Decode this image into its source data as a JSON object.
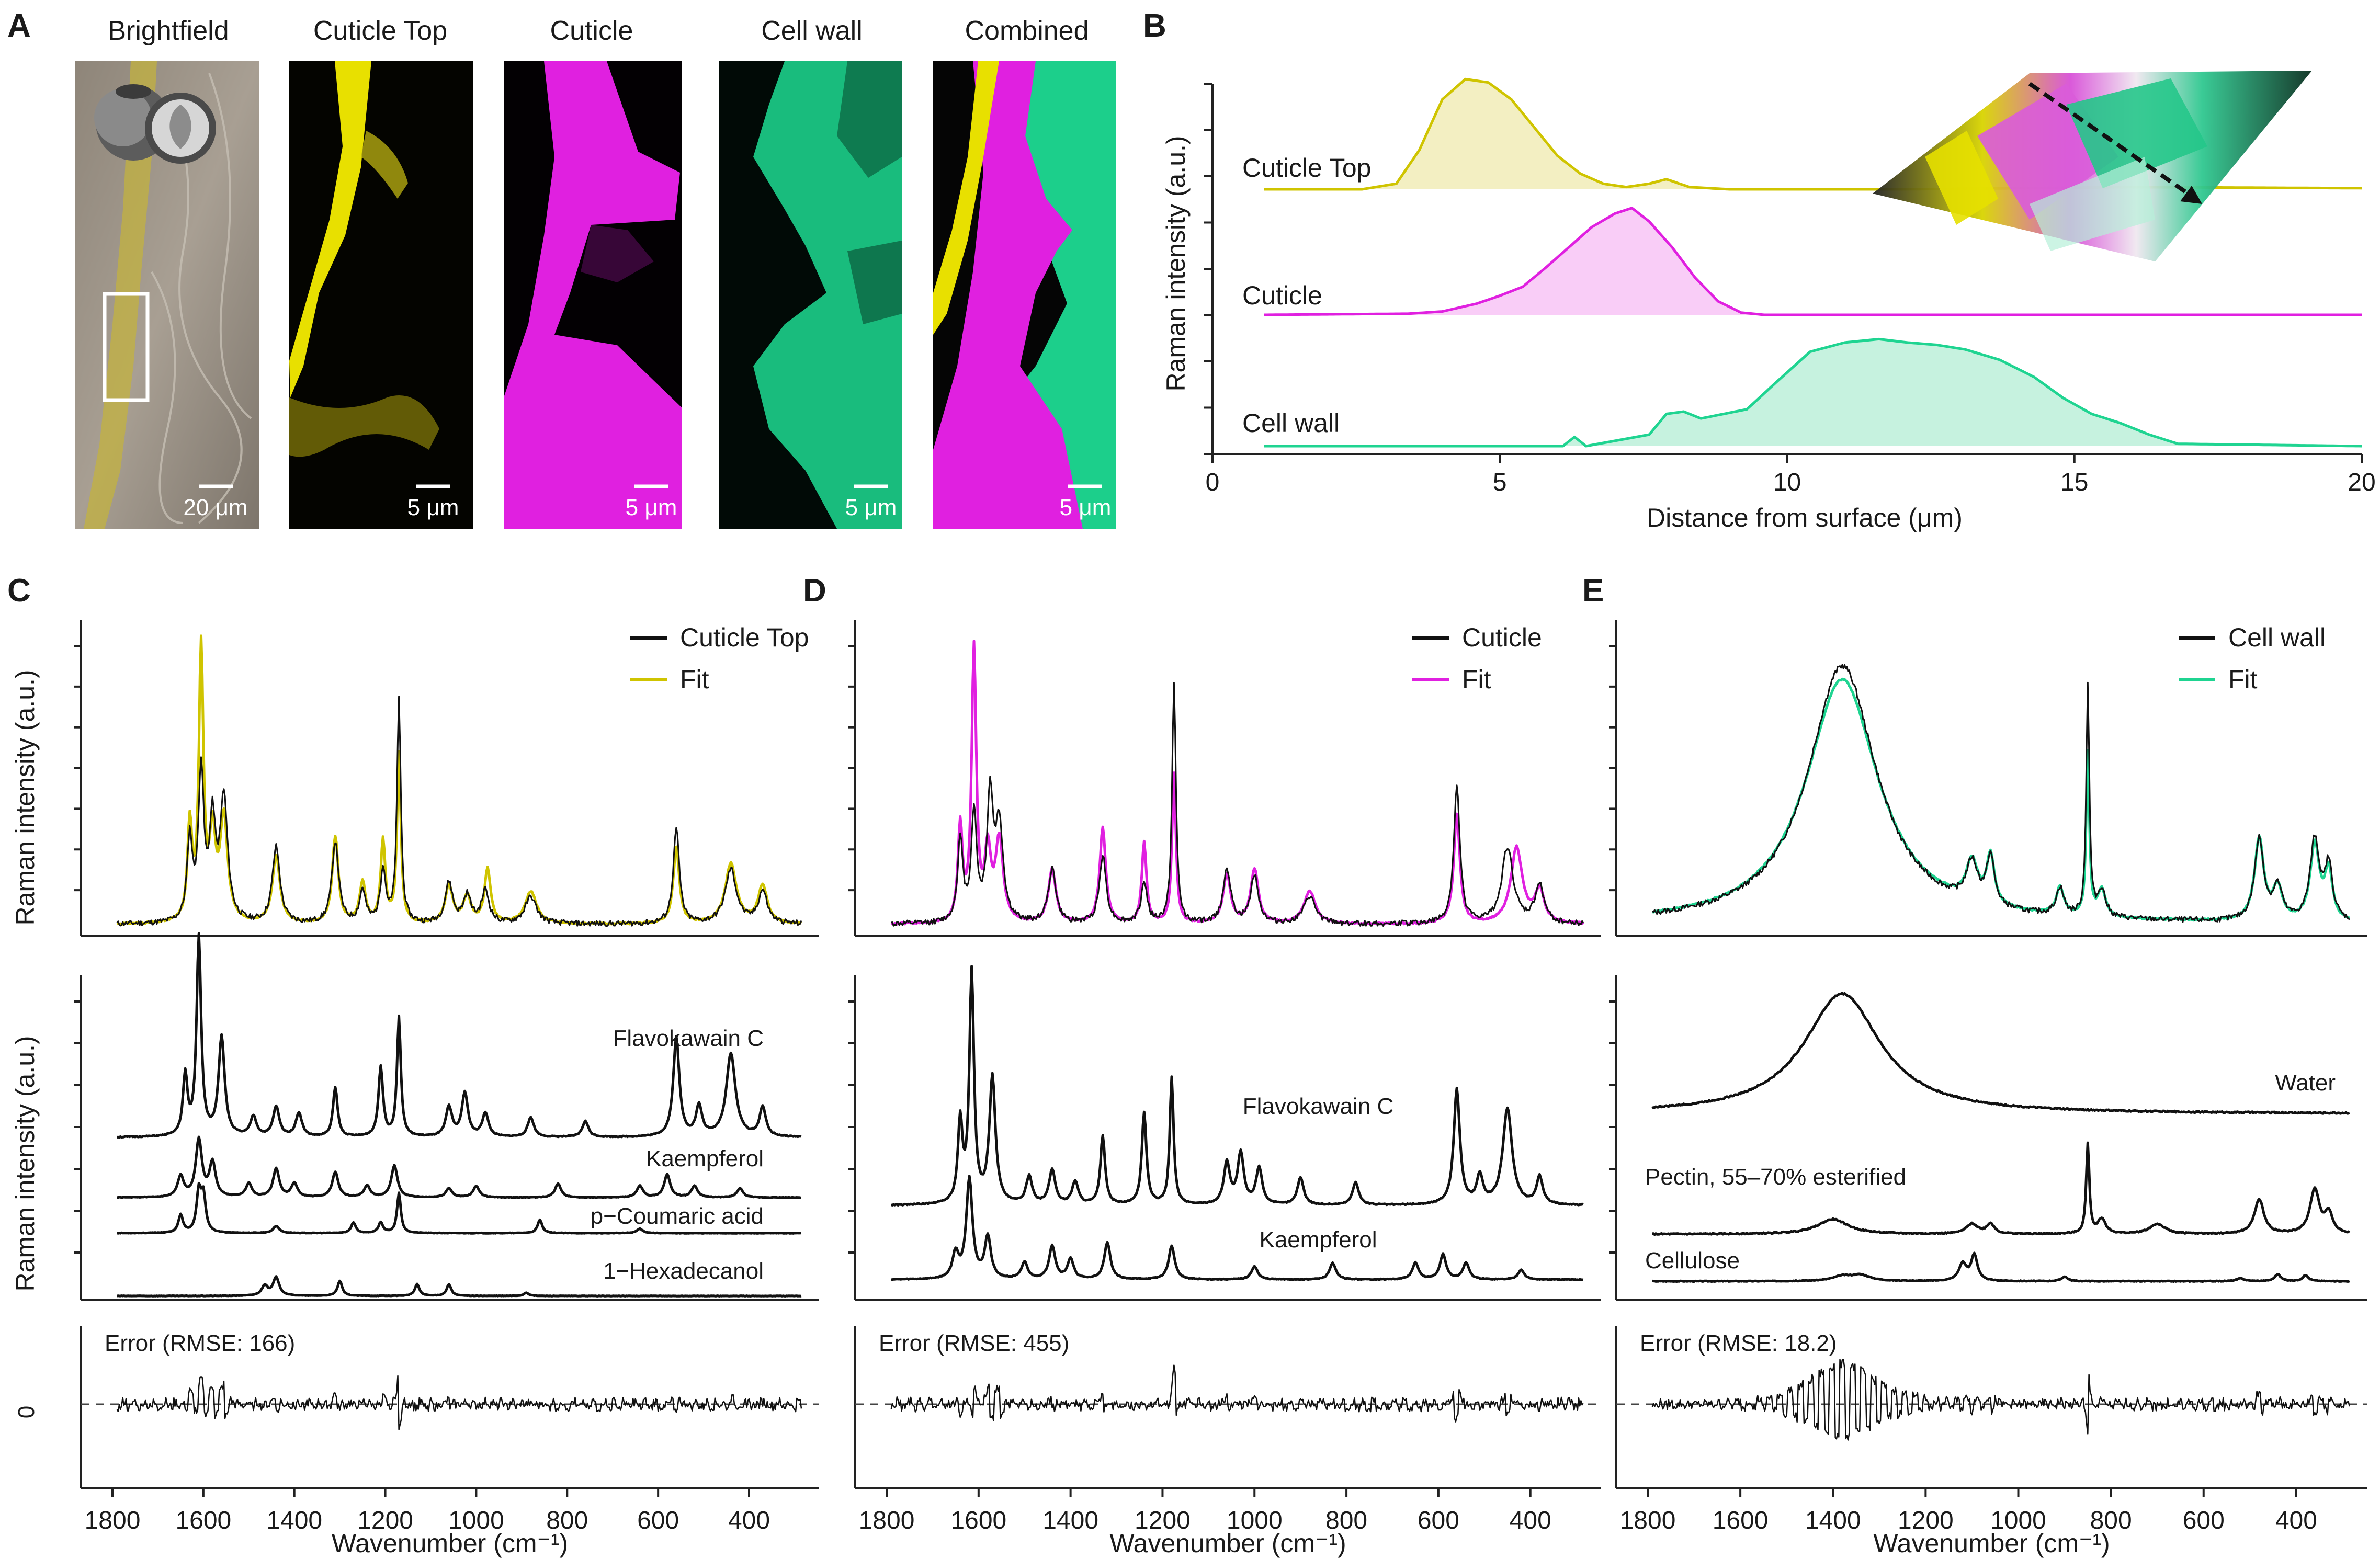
{
  "colors": {
    "cuticle_top": "#cfc400",
    "cuticle": "#e020e0",
    "cell_wall": "#1fd491",
    "raw": "#111111",
    "cuticle_top_fill": "#f3efc2",
    "cuticle_fill": "#f9cdf7",
    "cell_wall_fill": "#c6f2df"
  },
  "panel_letters": {
    "a": "A",
    "b": "B",
    "c": "C",
    "d": "D",
    "e": "E"
  },
  "panelA": {
    "titles": [
      "Brightfield",
      "Cuticle Top",
      "Cuticle",
      "Cell wall",
      "Combined"
    ],
    "scale_brightfield": "20 μm",
    "scale_small": "5 μm"
  },
  "chart_data": [
    {
      "id": "B",
      "type": "area",
      "title": "",
      "xlabel": "Distance from surface (μm)",
      "ylabel": "Raman intensity (a.u.)",
      "xlim": [
        0,
        20
      ],
      "x_ticks": [
        "0",
        "5",
        "10",
        "15",
        "20"
      ],
      "series": [
        {
          "name": "Cuticle Top",
          "x": [
            0.9,
            2.6,
            3.2,
            3.6,
            4.0,
            4.4,
            4.8,
            5.2,
            5.6,
            6.0,
            6.4,
            6.8,
            7.2,
            7.6,
            7.9,
            8.3,
            9,
            12,
            16,
            20
          ],
          "values": [
            0,
            0,
            0.05,
            0.35,
            0.8,
            0.98,
            0.95,
            0.8,
            0.55,
            0.3,
            0.14,
            0.05,
            0.02,
            0.05,
            0.09,
            0.02,
            0,
            0,
            0.02,
            0.01
          ]
        },
        {
          "name": "Cuticle",
          "x": [
            0.9,
            3.4,
            4.0,
            4.6,
            5.0,
            5.4,
            5.8,
            6.2,
            6.6,
            7.0,
            7.3,
            7.6,
            8.0,
            8.4,
            8.8,
            9.2,
            9.6,
            20
          ],
          "values": [
            0,
            0.01,
            0.03,
            0.1,
            0.17,
            0.25,
            0.42,
            0.6,
            0.78,
            0.9,
            0.95,
            0.83,
            0.6,
            0.33,
            0.12,
            0.02,
            0,
            0
          ]
        },
        {
          "name": "Cell wall",
          "x": [
            0.9,
            6.1,
            6.3,
            6.5,
            7.6,
            7.9,
            8.2,
            8.5,
            8.9,
            9.3,
            9.8,
            10.4,
            11.0,
            11.6,
            12.1,
            12.6,
            13.1,
            13.7,
            14.3,
            14.8,
            15.3,
            15.8,
            16.3,
            16.8,
            20
          ],
          "values": [
            0,
            0,
            0.08,
            0,
            0.1,
            0.28,
            0.3,
            0.24,
            0.28,
            0.32,
            0.55,
            0.82,
            0.9,
            0.93,
            0.9,
            0.88,
            0.84,
            0.75,
            0.6,
            0.42,
            0.28,
            0.2,
            0.1,
            0.02,
            0
          ]
        }
      ]
    },
    {
      "id": "C",
      "type": "line",
      "xlabel": "Wavenumber (cm⁻¹)",
      "ylabel_top": "Raman intensity (a.u.)",
      "ylabel_mid": "Raman intensity (a.u.)",
      "xlim": [
        1800,
        270
      ],
      "x_ticks": [
        "1800",
        "1600",
        "1400",
        "1200",
        "1000",
        "800",
        "600",
        "400"
      ],
      "legend": [
        "Cuticle Top",
        "Fit"
      ],
      "raw_peaks": [
        [
          1630,
          0.3,
          7
        ],
        [
          1605,
          0.55,
          7
        ],
        [
          1580,
          0.35,
          8
        ],
        [
          1555,
          0.45,
          10
        ],
        [
          1440,
          0.28,
          10
        ],
        [
          1310,
          0.3,
          9
        ],
        [
          1250,
          0.12,
          8
        ],
        [
          1205,
          0.2,
          7
        ],
        [
          1170,
          0.82,
          5
        ],
        [
          1060,
          0.15,
          10
        ],
        [
          1020,
          0.1,
          10
        ],
        [
          980,
          0.12,
          10
        ],
        [
          880,
          0.1,
          15
        ],
        [
          560,
          0.35,
          8
        ],
        [
          440,
          0.2,
          15
        ],
        [
          370,
          0.12,
          12
        ]
      ],
      "fit_peaks": [
        [
          1630,
          0.35,
          6
        ],
        [
          1605,
          1.0,
          6
        ],
        [
          1580,
          0.3,
          8
        ],
        [
          1555,
          0.38,
          10
        ],
        [
          1440,
          0.25,
          10
        ],
        [
          1310,
          0.32,
          8
        ],
        [
          1250,
          0.15,
          8
        ],
        [
          1205,
          0.3,
          6
        ],
        [
          1170,
          0.62,
          5
        ],
        [
          1060,
          0.14,
          10
        ],
        [
          1020,
          0.1,
          10
        ],
        [
          975,
          0.2,
          8
        ],
        [
          880,
          0.12,
          15
        ],
        [
          560,
          0.28,
          8
        ],
        [
          440,
          0.22,
          15
        ],
        [
          370,
          0.14,
          12
        ]
      ],
      "components": [
        {
          "name": "Flavokawain C",
          "peaks": [
            [
              1640,
              0.3,
              6
            ],
            [
              1610,
              1.0,
              6
            ],
            [
              1560,
              0.5,
              8
            ],
            [
              1490,
              0.1,
              8
            ],
            [
              1440,
              0.15,
              8
            ],
            [
              1390,
              0.12,
              8
            ],
            [
              1310,
              0.25,
              6
            ],
            [
              1210,
              0.35,
              6
            ],
            [
              1170,
              0.6,
              5
            ],
            [
              1060,
              0.15,
              8
            ],
            [
              1025,
              0.22,
              8
            ],
            [
              980,
              0.12,
              8
            ],
            [
              880,
              0.1,
              8
            ],
            [
              760,
              0.08,
              8
            ],
            [
              560,
              0.5,
              8
            ],
            [
              510,
              0.15,
              8
            ],
            [
              440,
              0.42,
              12
            ],
            [
              370,
              0.15,
              8
            ]
          ]
        },
        {
          "name": "Kaempferol",
          "peaks": [
            [
              1650,
              0.18,
              8
            ],
            [
              1610,
              0.5,
              8
            ],
            [
              1580,
              0.3,
              8
            ],
            [
              1500,
              0.12,
              8
            ],
            [
              1440,
              0.25,
              8
            ],
            [
              1400,
              0.12,
              8
            ],
            [
              1310,
              0.22,
              8
            ],
            [
              1240,
              0.1,
              8
            ],
            [
              1180,
              0.28,
              8
            ],
            [
              1060,
              0.08,
              8
            ],
            [
              1000,
              0.1,
              8
            ],
            [
              820,
              0.12,
              8
            ],
            [
              640,
              0.1,
              8
            ],
            [
              580,
              0.2,
              8
            ],
            [
              520,
              0.1,
              8
            ],
            [
              420,
              0.08,
              8
            ]
          ]
        },
        {
          "name": "p−Coumaric acid",
          "peaks": [
            [
              1650,
              0.2,
              6
            ],
            [
              1610,
              0.45,
              6
            ],
            [
              1600,
              0.4,
              6
            ],
            [
              1440,
              0.08,
              8
            ],
            [
              1270,
              0.12,
              6
            ],
            [
              1210,
              0.12,
              6
            ],
            [
              1170,
              0.45,
              5
            ],
            [
              860,
              0.15,
              6
            ],
            [
              640,
              0.05,
              8
            ]
          ]
        },
        {
          "name": "1−Hexadecanol",
          "peaks": [
            [
              1465,
              0.12,
              8
            ],
            [
              1440,
              0.22,
              8
            ],
            [
              1300,
              0.18,
              6
            ],
            [
              1130,
              0.14,
              6
            ],
            [
              1060,
              0.14,
              6
            ],
            [
              890,
              0.04,
              6
            ]
          ]
        }
      ],
      "error_label": "Error (RMSE: 166)",
      "error_ytick": "0"
    },
    {
      "id": "D",
      "type": "line",
      "xlabel": "Wavenumber (cm⁻¹)",
      "xlim": [
        1800,
        270
      ],
      "x_ticks": [
        "1800",
        "1600",
        "1400",
        "1200",
        "1000",
        "800",
        "600",
        "400"
      ],
      "legend": [
        "Cuticle",
        "Fit"
      ],
      "raw_peaks": [
        [
          1640,
          0.3,
          7
        ],
        [
          1610,
          0.4,
          7
        ],
        [
          1575,
          0.45,
          8
        ],
        [
          1555,
          0.35,
          10
        ],
        [
          1440,
          0.2,
          10
        ],
        [
          1330,
          0.25,
          9
        ],
        [
          1240,
          0.15,
          8
        ],
        [
          1175,
          0.88,
          5
        ],
        [
          1060,
          0.2,
          10
        ],
        [
          1000,
          0.18,
          10
        ],
        [
          880,
          0.1,
          15
        ],
        [
          560,
          0.5,
          8
        ],
        [
          450,
          0.28,
          15
        ],
        [
          380,
          0.14,
          12
        ]
      ],
      "fit_peaks": [
        [
          1640,
          0.35,
          6
        ],
        [
          1610,
          1.0,
          6
        ],
        [
          1580,
          0.25,
          8
        ],
        [
          1555,
          0.3,
          10
        ],
        [
          1440,
          0.2,
          10
        ],
        [
          1330,
          0.35,
          8
        ],
        [
          1240,
          0.3,
          6
        ],
        [
          1175,
          0.55,
          5
        ],
        [
          1060,
          0.18,
          10
        ],
        [
          1000,
          0.2,
          10
        ],
        [
          880,
          0.12,
          15
        ],
        [
          560,
          0.4,
          8
        ],
        [
          430,
          0.28,
          15
        ],
        [
          380,
          0.12,
          12
        ]
      ],
      "components": [
        {
          "name": "Flavokawain C",
          "peaks": [
            [
              1640,
              0.35,
              6
            ],
            [
              1615,
              1.0,
              6
            ],
            [
              1570,
              0.55,
              8
            ],
            [
              1490,
              0.12,
              8
            ],
            [
              1440,
              0.15,
              8
            ],
            [
              1390,
              0.1,
              8
            ],
            [
              1330,
              0.3,
              6
            ],
            [
              1240,
              0.4,
              6
            ],
            [
              1180,
              0.55,
              5
            ],
            [
              1060,
              0.18,
              8
            ],
            [
              1030,
              0.22,
              8
            ],
            [
              990,
              0.16,
              8
            ],
            [
              900,
              0.12,
              8
            ],
            [
              780,
              0.1,
              8
            ],
            [
              560,
              0.5,
              8
            ],
            [
              510,
              0.12,
              8
            ],
            [
              450,
              0.42,
              12
            ],
            [
              380,
              0.12,
              8
            ]
          ]
        },
        {
          "name": "Kaempferol",
          "peaks": [
            [
              1650,
              0.15,
              8
            ],
            [
              1620,
              0.6,
              8
            ],
            [
              1580,
              0.25,
              8
            ],
            [
              1500,
              0.1,
              8
            ],
            [
              1440,
              0.2,
              8
            ],
            [
              1400,
              0.12,
              8
            ],
            [
              1320,
              0.22,
              8
            ],
            [
              1180,
              0.2,
              8
            ],
            [
              1000,
              0.08,
              8
            ],
            [
              830,
              0.1,
              8
            ],
            [
              650,
              0.1,
              8
            ],
            [
              590,
              0.15,
              8
            ],
            [
              540,
              0.1,
              8
            ],
            [
              420,
              0.06,
              8
            ]
          ]
        }
      ],
      "error_label": "Error (RMSE: 455)"
    },
    {
      "id": "E",
      "type": "line",
      "xlabel": "Wavenumber (cm⁻¹)",
      "xlim": [
        1800,
        270
      ],
      "x_ticks": [
        "1800",
        "1600",
        "1400",
        "1200",
        "1000",
        "800",
        "600",
        "400"
      ],
      "legend": [
        "Cell wall",
        "Fit"
      ],
      "raw_peaks": [
        [
          1380,
          0.95,
          90
        ],
        [
          1100,
          0.15,
          15
        ],
        [
          1060,
          0.18,
          10
        ],
        [
          910,
          0.1,
          10
        ],
        [
          850,
          0.85,
          4
        ],
        [
          820,
          0.1,
          10
        ],
        [
          480,
          0.3,
          12
        ],
        [
          440,
          0.12,
          12
        ],
        [
          360,
          0.3,
          12
        ],
        [
          330,
          0.2,
          10
        ]
      ],
      "fit_peaks": [
        [
          1380,
          0.9,
          95
        ],
        [
          1100,
          0.15,
          15
        ],
        [
          1060,
          0.18,
          10
        ],
        [
          910,
          0.1,
          10
        ],
        [
          850,
          0.6,
          4
        ],
        [
          820,
          0.1,
          10
        ],
        [
          480,
          0.3,
          12
        ],
        [
          440,
          0.12,
          12
        ],
        [
          360,
          0.28,
          12
        ],
        [
          330,
          0.18,
          10
        ]
      ],
      "components": [
        {
          "name": "Water",
          "peaks": [
            [
              1380,
              1.0,
              100
            ]
          ]
        },
        {
          "name": "Pectin, 55–70% esterified",
          "peaks": [
            [
              1400,
              0.15,
              40
            ],
            [
              1100,
              0.1,
              15
            ],
            [
              1060,
              0.1,
              10
            ],
            [
              850,
              0.9,
              4
            ],
            [
              820,
              0.15,
              10
            ],
            [
              700,
              0.1,
              20
            ],
            [
              480,
              0.35,
              12
            ],
            [
              360,
              0.45,
              12
            ],
            [
              330,
              0.2,
              10
            ]
          ]
        },
        {
          "name": "Cellulose",
          "peaks": [
            [
              1380,
              0.08,
              25
            ],
            [
              1340,
              0.1,
              25
            ],
            [
              1120,
              0.3,
              10
            ],
            [
              1095,
              0.45,
              8
            ],
            [
              900,
              0.08,
              8
            ],
            [
              520,
              0.05,
              10
            ],
            [
              440,
              0.12,
              8
            ],
            [
              380,
              0.1,
              8
            ]
          ]
        }
      ],
      "error_label": "Error (RMSE: 18.2)"
    }
  ]
}
